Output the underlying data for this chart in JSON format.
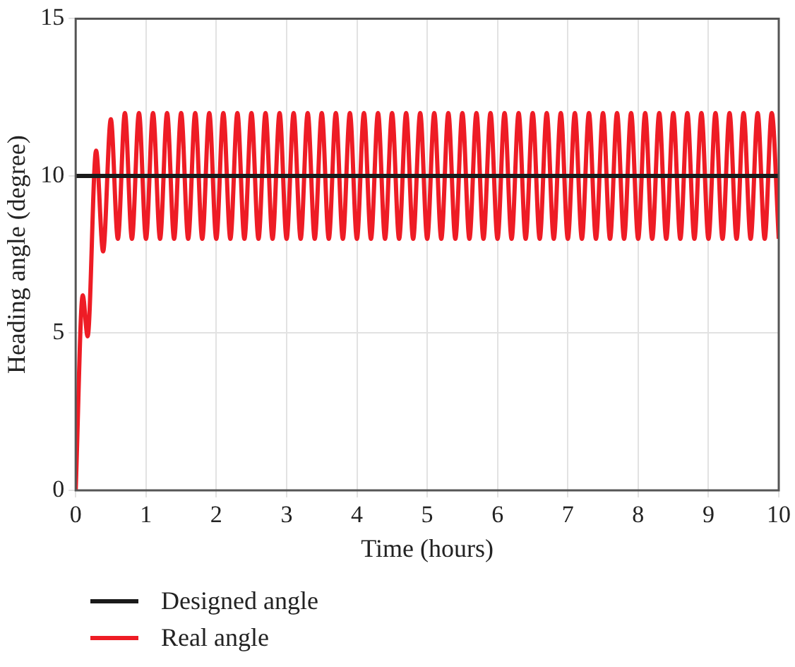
{
  "chart_data": {
    "type": "line",
    "xlabel": "Time (hours)",
    "ylabel": "Heading angle (degree)",
    "xlim": [
      0,
      10
    ],
    "ylim": [
      0,
      15
    ],
    "xticks": [
      0,
      1,
      2,
      3,
      4,
      5,
      6,
      7,
      8,
      9,
      10
    ],
    "yticks": [
      0,
      5,
      10,
      15
    ],
    "grid": true,
    "legend": "bottom",
    "series": [
      {
        "name": "Designed angle",
        "color": "#1a1a1a",
        "x": [
          0,
          10
        ],
        "values": [
          10,
          10
        ]
      },
      {
        "name": "Real angle",
        "color": "#ee1c25",
        "x": [
          0,
          0.1,
          0.17,
          0.29,
          0.39,
          0.5,
          0.6,
          0.7,
          0.8,
          0.9,
          1,
          1.1,
          1.2,
          1.3,
          1.4,
          1.5,
          1.6,
          1.7,
          1.8,
          1.9,
          2,
          2.1,
          2.2,
          2.3,
          2.4,
          2.5,
          2.6,
          2.7,
          2.8,
          2.9,
          3,
          3.1,
          3.2,
          3.3,
          3.4,
          3.5,
          3.6,
          3.7,
          3.8,
          3.9,
          4,
          4.1,
          4.2,
          4.3,
          4.4,
          4.5,
          4.6,
          4.7,
          4.8,
          4.9,
          5,
          5.1,
          5.2,
          5.3,
          5.4,
          5.5,
          5.6,
          5.7,
          5.8,
          5.9,
          6,
          6.1,
          6.2,
          6.3,
          6.4,
          6.5,
          6.6,
          6.7,
          6.8,
          6.9,
          7,
          7.1,
          7.2,
          7.3,
          7.4,
          7.5,
          7.6,
          7.7,
          7.8,
          7.9,
          8,
          8.1,
          8.2,
          8.3,
          8.4,
          8.5,
          8.6,
          8.7,
          8.8,
          8.9,
          9,
          9.1,
          9.2,
          9.3,
          9.4,
          9.5,
          9.6,
          9.7,
          9.8,
          9.9,
          10
        ],
        "values": [
          0,
          6.2,
          4.9,
          10.8,
          7.6,
          11.8,
          8,
          12,
          8,
          12,
          8,
          12,
          8,
          12,
          8,
          12,
          8,
          12,
          8,
          12,
          8,
          12,
          8,
          12,
          8,
          12,
          8,
          12,
          8,
          12,
          8,
          12,
          8,
          12,
          8,
          12,
          8,
          12,
          8,
          12,
          8,
          12,
          8,
          12,
          8,
          12,
          8,
          12,
          8,
          12,
          8,
          12,
          8,
          12,
          8,
          12,
          8,
          12,
          8,
          12,
          8,
          12,
          8,
          12,
          8,
          12,
          8,
          12,
          8,
          12,
          8,
          12,
          8,
          12,
          8,
          12,
          8,
          12,
          8,
          12,
          8,
          12,
          8,
          12,
          8,
          12,
          8,
          12,
          8,
          12,
          8,
          12,
          8,
          12,
          8,
          12,
          8,
          12,
          8,
          12,
          8
        ]
      }
    ]
  }
}
